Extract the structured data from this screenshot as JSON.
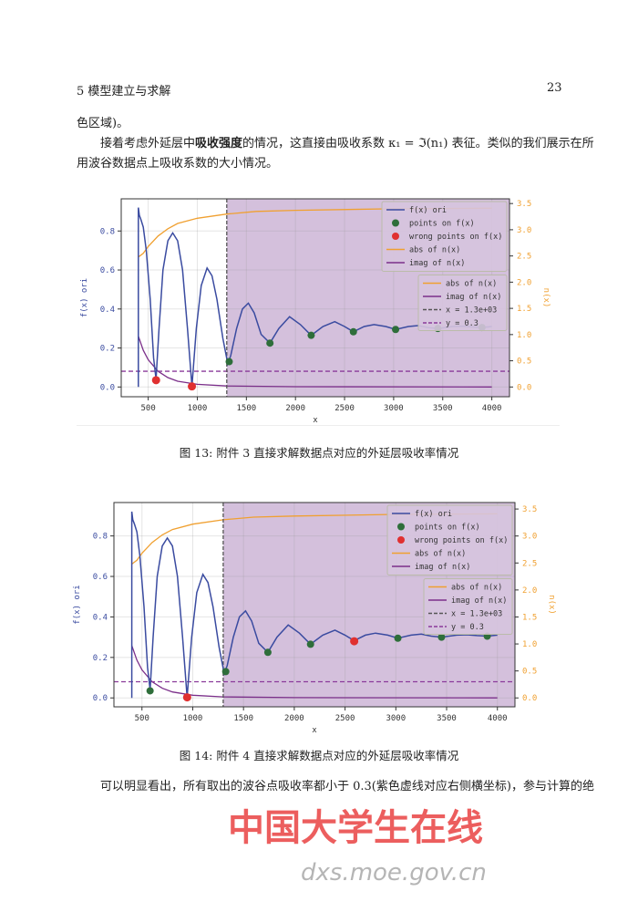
{
  "header": {
    "section": "5   模型建立与求解",
    "page_number": "23"
  },
  "paragraphs": {
    "p1": "色区域)。",
    "p2_pre": "接着考虑外延层中",
    "p2_bold": "吸收强度",
    "p2_post": "的情况，这直接由吸收系数 κ₁ = ℑ(n₁) 表征。类似的我们展示在所",
    "p3": "用波谷数据点上吸收系数的大小情况。",
    "p4": "可以明显看出，所有取出的波谷点吸收率都小于 0.3(紫色虚线对应右侧横坐标)，参与计算的绝"
  },
  "captions": {
    "fig13": "图 13: 附件 3 直接求解数据点对应的外延层吸收率情况",
    "fig14": "图 14: 附件 4 直接求解数据点对应的外延层吸收率情况"
  },
  "watermark": {
    "logo_text": "中国大学生在线",
    "url": "dxs.moe.gov.cn"
  },
  "colors": {
    "f": "#3a4ba0",
    "abs": "#f0a030",
    "imag": "#7b2f8a",
    "green": "#2e6e3a",
    "red": "#e03030",
    "shade": "#d4c0dc",
    "vline": "#555555",
    "hline": "#8a3a9a"
  },
  "chart_data": [
    {
      "type": "line",
      "xlabel": "x",
      "ylabel": "f(x) ori",
      "y2label": "n(x)",
      "xlim": [
        225,
        4180
      ],
      "ylim": [
        -0.05,
        0.965
      ],
      "y2lim": [
        -0.186,
        3.59
      ],
      "xticks": [
        500,
        1000,
        1500,
        2000,
        2500,
        3000,
        3500,
        4000
      ],
      "yticks": [
        0.0,
        0.2,
        0.4,
        0.6,
        0.8
      ],
      "y2ticks": [
        0.0,
        0.5,
        1.0,
        1.5,
        2.0,
        2.5,
        3.0,
        3.5
      ],
      "grid": true,
      "shade_from_x": 1300,
      "vline_x": 1300,
      "hline_y2": 0.3,
      "f_ori": [
        [
          400,
          0
        ],
        [
          400,
          0.92
        ],
        [
          410,
          0.88
        ],
        [
          425,
          0.86
        ],
        [
          450,
          0.82
        ],
        [
          480,
          0.7
        ],
        [
          520,
          0.45
        ],
        [
          555,
          0.15
        ],
        [
          580,
          0.04
        ],
        [
          610,
          0.3
        ],
        [
          650,
          0.6
        ],
        [
          700,
          0.75
        ],
        [
          750,
          0.79
        ],
        [
          800,
          0.75
        ],
        [
          850,
          0.6
        ],
        [
          900,
          0.3
        ],
        [
          945,
          0.003
        ],
        [
          990,
          0.3
        ],
        [
          1040,
          0.52
        ],
        [
          1100,
          0.61
        ],
        [
          1150,
          0.57
        ],
        [
          1200,
          0.45
        ],
        [
          1260,
          0.25
        ],
        [
          1310,
          0.12
        ],
        [
          1340,
          0.16
        ],
        [
          1400,
          0.3
        ],
        [
          1460,
          0.4
        ],
        [
          1520,
          0.43
        ],
        [
          1580,
          0.38
        ],
        [
          1650,
          0.27
        ],
        [
          1740,
          0.225
        ],
        [
          1830,
          0.3
        ],
        [
          1940,
          0.36
        ],
        [
          2050,
          0.32
        ],
        [
          2160,
          0.265
        ],
        [
          2280,
          0.31
        ],
        [
          2400,
          0.335
        ],
        [
          2500,
          0.31
        ],
        [
          2590,
          0.283
        ],
        [
          2700,
          0.31
        ],
        [
          2800,
          0.32
        ],
        [
          2920,
          0.31
        ],
        [
          3020,
          0.295
        ],
        [
          3150,
          0.31
        ],
        [
          3250,
          0.315
        ],
        [
          3350,
          0.305
        ],
        [
          3450,
          0.3
        ],
        [
          3600,
          0.31
        ],
        [
          3700,
          0.312
        ],
        [
          3800,
          0.308
        ],
        [
          3900,
          0.305
        ],
        [
          4000,
          0.31
        ]
      ],
      "abs_n": [
        [
          400,
          2.48
        ],
        [
          450,
          2.55
        ],
        [
          500,
          2.68
        ],
        [
          600,
          2.88
        ],
        [
          700,
          3.02
        ],
        [
          800,
          3.12
        ],
        [
          1000,
          3.22
        ],
        [
          1300,
          3.3
        ],
        [
          1600,
          3.35
        ],
        [
          2000,
          3.37
        ],
        [
          3000,
          3.4
        ],
        [
          4000,
          3.41
        ]
      ],
      "imag_n": [
        [
          400,
          0.97
        ],
        [
          450,
          0.7
        ],
        [
          500,
          0.52
        ],
        [
          600,
          0.3
        ],
        [
          700,
          0.18
        ],
        [
          800,
          0.11
        ],
        [
          1000,
          0.05
        ],
        [
          1300,
          0.02
        ],
        [
          2000,
          0.005
        ],
        [
          4000,
          0.0
        ]
      ],
      "points": [
        [
          1325,
          0.13
        ],
        [
          1740,
          0.225
        ],
        [
          2160,
          0.265
        ],
        [
          2590,
          0.283
        ],
        [
          3020,
          0.295
        ],
        [
          3450,
          0.3
        ],
        [
          3900,
          0.305
        ]
      ],
      "wrong_points": [
        [
          580,
          0.035
        ],
        [
          945,
          0.003
        ]
      ],
      "legend1": [
        "f(x) ori",
        "points on f(x)",
        "wrong points on f(x)",
        "abs of n(x)",
        "imag of n(x)"
      ],
      "legend2": [
        "abs of n(x)",
        "imag of n(x)",
        "x = 1.3e+03",
        "y = 0.3"
      ],
      "legend_position": "top-right"
    },
    {
      "type": "line",
      "xlabel": "x",
      "ylabel": "f(x) ori",
      "y2label": "n(x)",
      "xlim": [
        224,
        4173
      ],
      "ylim": [
        -0.044,
        0.965
      ],
      "y2lim": [
        -0.165,
        3.62
      ],
      "xticks": [
        500,
        1000,
        1500,
        2000,
        2500,
        3000,
        3500,
        4000
      ],
      "yticks": [
        0.0,
        0.2,
        0.4,
        0.6,
        0.8
      ],
      "y2ticks": [
        0.0,
        0.5,
        1.0,
        1.5,
        2.0,
        2.5,
        3.0,
        3.5
      ],
      "grid": true,
      "shade_from_x": 1300,
      "vline_x": 1300,
      "hline_y2": 0.3,
      "f_ori": [
        [
          400,
          0
        ],
        [
          400,
          0.92
        ],
        [
          410,
          0.88
        ],
        [
          425,
          0.86
        ],
        [
          450,
          0.82
        ],
        [
          480,
          0.7
        ],
        [
          520,
          0.45
        ],
        [
          555,
          0.15
        ],
        [
          580,
          0.04
        ],
        [
          610,
          0.3
        ],
        [
          650,
          0.6
        ],
        [
          700,
          0.75
        ],
        [
          750,
          0.79
        ],
        [
          800,
          0.75
        ],
        [
          850,
          0.6
        ],
        [
          900,
          0.3
        ],
        [
          945,
          0.003
        ],
        [
          990,
          0.3
        ],
        [
          1040,
          0.52
        ],
        [
          1100,
          0.61
        ],
        [
          1150,
          0.57
        ],
        [
          1200,
          0.45
        ],
        [
          1260,
          0.25
        ],
        [
          1310,
          0.12
        ],
        [
          1340,
          0.16
        ],
        [
          1400,
          0.3
        ],
        [
          1460,
          0.4
        ],
        [
          1520,
          0.43
        ],
        [
          1580,
          0.38
        ],
        [
          1650,
          0.27
        ],
        [
          1740,
          0.225
        ],
        [
          1830,
          0.3
        ],
        [
          1940,
          0.36
        ],
        [
          2050,
          0.32
        ],
        [
          2160,
          0.265
        ],
        [
          2280,
          0.31
        ],
        [
          2400,
          0.335
        ],
        [
          2500,
          0.31
        ],
        [
          2590,
          0.283
        ],
        [
          2700,
          0.31
        ],
        [
          2800,
          0.32
        ],
        [
          2920,
          0.31
        ],
        [
          3020,
          0.295
        ],
        [
          3150,
          0.31
        ],
        [
          3250,
          0.315
        ],
        [
          3350,
          0.305
        ],
        [
          3450,
          0.3
        ],
        [
          3600,
          0.31
        ],
        [
          3700,
          0.312
        ],
        [
          3800,
          0.308
        ],
        [
          3900,
          0.305
        ],
        [
          4000,
          0.31
        ]
      ],
      "abs_n": [
        [
          400,
          2.48
        ],
        [
          450,
          2.55
        ],
        [
          500,
          2.68
        ],
        [
          600,
          2.88
        ],
        [
          700,
          3.02
        ],
        [
          800,
          3.12
        ],
        [
          1000,
          3.22
        ],
        [
          1300,
          3.3
        ],
        [
          1600,
          3.35
        ],
        [
          2000,
          3.37
        ],
        [
          3000,
          3.4
        ],
        [
          4000,
          3.41
        ]
      ],
      "imag_n": [
        [
          400,
          0.97
        ],
        [
          450,
          0.7
        ],
        [
          500,
          0.52
        ],
        [
          600,
          0.3
        ],
        [
          700,
          0.18
        ],
        [
          800,
          0.11
        ],
        [
          1000,
          0.05
        ],
        [
          1300,
          0.02
        ],
        [
          2000,
          0.005
        ],
        [
          4000,
          0.0
        ]
      ],
      "points": [
        [
          580,
          0.035
        ],
        [
          1325,
          0.13
        ],
        [
          1740,
          0.225
        ],
        [
          2160,
          0.265
        ],
        [
          3020,
          0.295
        ],
        [
          3450,
          0.3
        ],
        [
          3900,
          0.305
        ]
      ],
      "wrong_points": [
        [
          945,
          0.003
        ],
        [
          2590,
          0.28
        ]
      ],
      "legend1": [
        "f(x) ori",
        "points on f(x)",
        "wrong points on f(x)",
        "abs of n(x)",
        "imag of n(x)"
      ],
      "legend2": [
        "abs of n(x)",
        "imag of n(x)",
        "x = 1.3e+03",
        "y = 0.3"
      ],
      "legend_position": "top-right"
    }
  ]
}
